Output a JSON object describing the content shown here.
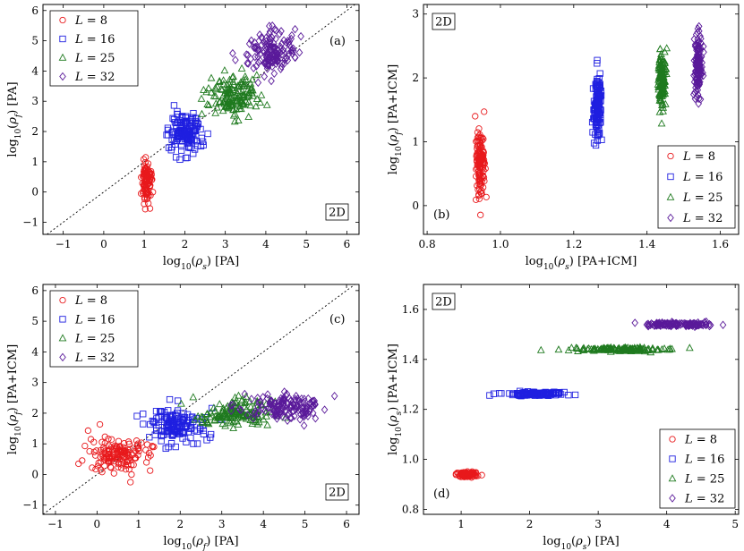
{
  "chart_data": [
    {
      "type": "scatter",
      "panel": "(a)",
      "tag": "2D",
      "xlabel": "log10(ρs) [PA]",
      "ylabel": "log10(ρf) [PA]",
      "xlim": [
        -1.5,
        6.3
      ],
      "ylim": [
        -1.4,
        6.2
      ],
      "xticks": [
        -1,
        0,
        1,
        2,
        3,
        4,
        5,
        6
      ],
      "yticks": [
        -1,
        0,
        1,
        2,
        3,
        4,
        5,
        6
      ],
      "diagonal": true,
      "legend": "top-left",
      "series": [
        {
          "name": "L = 8",
          "marker": "circle",
          "color": "#e8191c",
          "x_mean": 1.05,
          "x_sd": 0.06,
          "y_mean": 0.35,
          "y_sd": 0.35,
          "n": 110
        },
        {
          "name": "L = 16",
          "marker": "square",
          "color": "#1f1fe0",
          "x_mean": 2.0,
          "x_sd": 0.2,
          "y_mean": 1.95,
          "y_sd": 0.3,
          "n": 150
        },
        {
          "name": "L = 25",
          "marker": "triangle",
          "color": "#1f7a1f",
          "x_mean": 3.2,
          "x_sd": 0.3,
          "y_mean": 3.2,
          "y_sd": 0.35,
          "n": 150
        },
        {
          "name": "L = 32",
          "marker": "diamond",
          "color": "#5a1a9a",
          "x_mean": 4.1,
          "x_sd": 0.3,
          "y_mean": 4.6,
          "y_sd": 0.35,
          "n": 150
        }
      ]
    },
    {
      "type": "scatter",
      "panel": "(b)",
      "tag": "2D",
      "xlabel": "log10(ρs) [PA+ICM]",
      "ylabel": "log10(ρf) [PA+ICM]",
      "xlim": [
        0.79,
        1.65
      ],
      "ylim": [
        -0.45,
        3.15
      ],
      "xticks": [
        0.8,
        1.0,
        1.2,
        1.4,
        1.6
      ],
      "yticks": [
        0,
        1,
        2,
        3
      ],
      "diagonal": false,
      "legend": "bottom-right",
      "series": [
        {
          "name": "L = 8",
          "marker": "circle",
          "color": "#e8191c",
          "x_mean": 0.945,
          "x_sd": 0.006,
          "y_mean": 0.6,
          "y_sd": 0.3,
          "n": 140
        },
        {
          "name": "L = 16",
          "marker": "square",
          "color": "#1f1fe0",
          "x_mean": 1.265,
          "x_sd": 0.005,
          "y_mean": 1.55,
          "y_sd": 0.25,
          "n": 140
        },
        {
          "name": "L = 25",
          "marker": "triangle",
          "color": "#1f7a1f",
          "x_mean": 1.44,
          "x_sd": 0.005,
          "y_mean": 2.0,
          "y_sd": 0.22,
          "n": 140
        },
        {
          "name": "L = 32",
          "marker": "diamond",
          "color": "#5a1a9a",
          "x_mean": 1.54,
          "x_sd": 0.005,
          "y_mean": 2.2,
          "y_sd": 0.25,
          "n": 140
        }
      ]
    },
    {
      "type": "scatter",
      "panel": "(c)",
      "tag": "2D",
      "xlabel": "log10(ρf) [PA]",
      "ylabel": "log10(ρf) [PA+ICM]",
      "xlim": [
        -1.3,
        6.3
      ],
      "ylim": [
        -1.3,
        6.2
      ],
      "xticks": [
        -1,
        0,
        1,
        2,
        3,
        4,
        5,
        6
      ],
      "yticks": [
        -1,
        0,
        1,
        2,
        3,
        4,
        5,
        6
      ],
      "diagonal": true,
      "legend": "top-left",
      "series": [
        {
          "name": "L = 8",
          "marker": "circle",
          "color": "#e8191c",
          "x_mean": 0.55,
          "x_sd": 0.4,
          "y_mean": 0.65,
          "y_sd": 0.28,
          "n": 150
        },
        {
          "name": "L = 16",
          "marker": "square",
          "color": "#1f1fe0",
          "x_mean": 1.9,
          "x_sd": 0.35,
          "y_mean": 1.6,
          "y_sd": 0.28,
          "n": 150
        },
        {
          "name": "L = 25",
          "marker": "triangle",
          "color": "#1f7a1f",
          "x_mean": 3.4,
          "x_sd": 0.45,
          "y_mean": 2.0,
          "y_sd": 0.22,
          "n": 150
        },
        {
          "name": "L = 32",
          "marker": "diamond",
          "color": "#5a1a9a",
          "x_mean": 4.6,
          "x_sd": 0.45,
          "y_mean": 2.2,
          "y_sd": 0.22,
          "n": 150
        }
      ]
    },
    {
      "type": "scatter",
      "panel": "(d)",
      "tag": "2D",
      "xlabel": "log10(ρs) [PA]",
      "ylabel": "log10(ρs) [PA+ICM]",
      "xlim": [
        0.45,
        5.05
      ],
      "ylim": [
        0.78,
        1.7
      ],
      "xticks": [
        1,
        2,
        3,
        4,
        5
      ],
      "yticks": [
        0.8,
        1.0,
        1.2,
        1.4,
        1.6
      ],
      "diagonal": false,
      "legend": "bottom-right",
      "series": [
        {
          "name": "L = 8",
          "marker": "circle",
          "color": "#e8191c",
          "x_mean": 1.1,
          "x_sd": 0.08,
          "y_mean": 0.94,
          "y_sd": 0.005,
          "n": 100
        },
        {
          "name": "L = 16",
          "marker": "square",
          "color": "#1f1fe0",
          "x_mean": 2.1,
          "x_sd": 0.22,
          "y_mean": 1.262,
          "y_sd": 0.004,
          "n": 130
        },
        {
          "name": "L = 25",
          "marker": "triangle",
          "color": "#1f7a1f",
          "x_mean": 3.3,
          "x_sd": 0.35,
          "y_mean": 1.44,
          "y_sd": 0.004,
          "n": 140
        },
        {
          "name": "L = 32",
          "marker": "diamond",
          "color": "#5a1a9a",
          "x_mean": 4.15,
          "x_sd": 0.22,
          "y_mean": 1.54,
          "y_sd": 0.004,
          "n": 140
        }
      ]
    }
  ]
}
